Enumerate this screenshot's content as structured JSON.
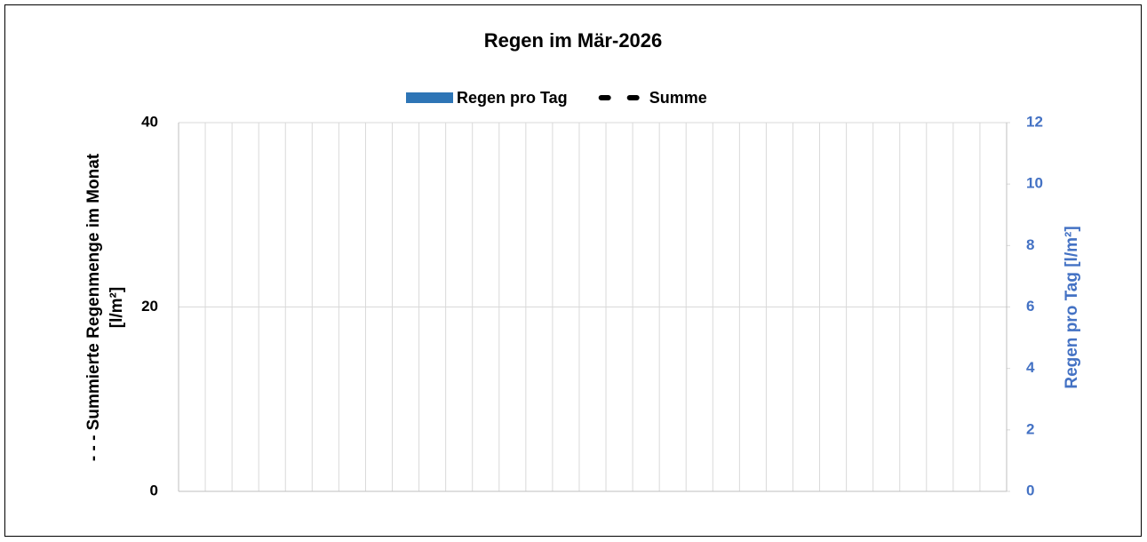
{
  "chart_data": {
    "type": "bar",
    "title": "Regen im Mär-2026",
    "categories": [
      null,
      null,
      null,
      null,
      null,
      null,
      null,
      null,
      null,
      null,
      null,
      null,
      null,
      null,
      null,
      null,
      null,
      null,
      null,
      null,
      null,
      null,
      null,
      null,
      null,
      null,
      null,
      null,
      null,
      null,
      null
    ],
    "series": [
      {
        "name": "Regen pro Tag",
        "color": "#2e75b6",
        "type": "bar",
        "axis": "y2",
        "values": [
          null,
          null,
          null,
          null,
          null,
          null,
          null,
          null,
          null,
          null,
          null,
          null,
          null,
          null,
          null,
          null,
          null,
          null,
          null,
          null,
          null,
          null,
          null,
          null,
          null,
          null,
          null,
          null,
          null,
          null,
          null
        ]
      },
      {
        "name": "Summe",
        "color": "#000000",
        "type": "line",
        "dash": true,
        "values": [
          null,
          null,
          null,
          null,
          null,
          null,
          null,
          null,
          null,
          null,
          null,
          null,
          null,
          null,
          null,
          null,
          null,
          null,
          null,
          null,
          null,
          null,
          null,
          null,
          null,
          null,
          null,
          null,
          null,
          null,
          null
        ]
      }
    ],
    "y_label": [
      "- - - Summierte Regenmenge im Monat",
      "[l/m²]"
    ],
    "y2_label": "Regen pro Tag [l/m²]",
    "y2_color": "#4472c4",
    "ylim": [
      0,
      40
    ],
    "yticks": [
      0,
      20,
      40
    ],
    "y2lim": [
      0,
      12
    ],
    "y2ticks": [
      0,
      2,
      4,
      6,
      8,
      10,
      12
    ],
    "grid": true,
    "legend": "top"
  }
}
